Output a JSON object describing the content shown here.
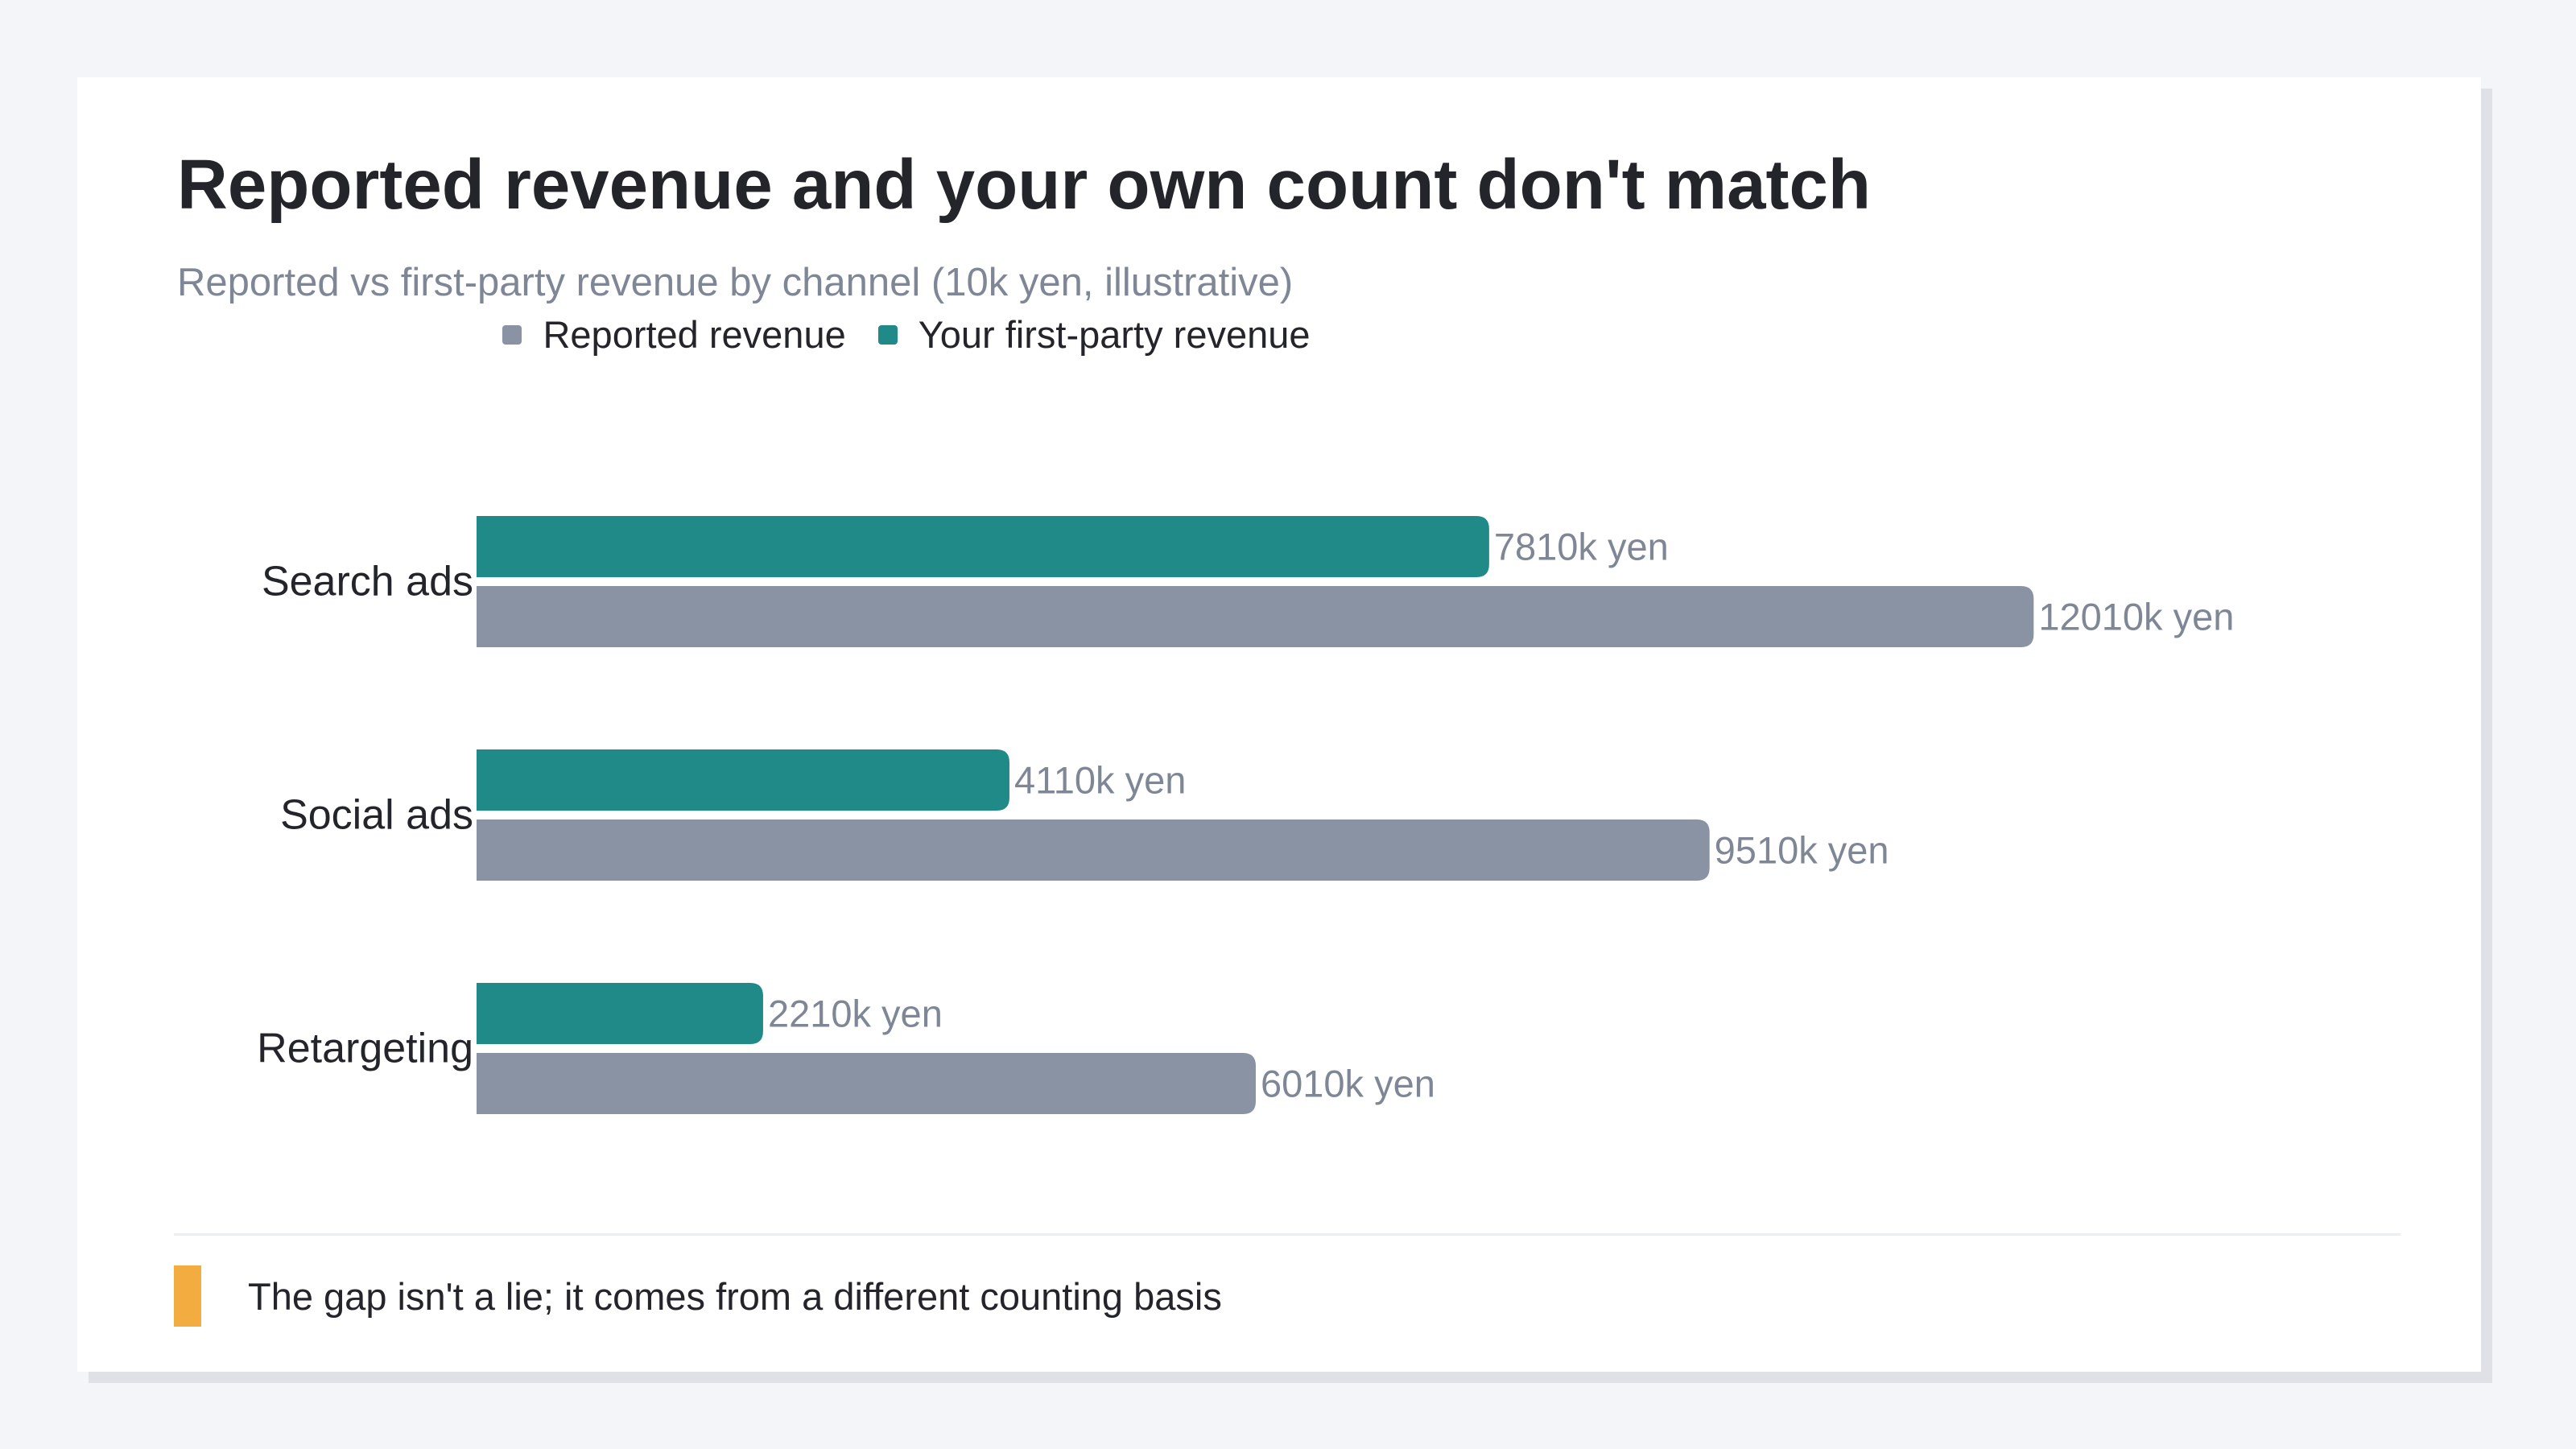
{
  "title": "Reported revenue and your own count don't match",
  "subtitle": "Reported vs first-party revenue by channel (10k yen, illustrative)",
  "note": "The gap isn't a lie; it comes from a different counting basis",
  "colors": {
    "reported": "#8a93a3",
    "first_party": "#1f8a88",
    "note_accent": "#f2ac3f"
  },
  "chart_data": {
    "type": "bar",
    "orientation": "horizontal",
    "categories": [
      "Search ads",
      "Social ads",
      "Retargeting"
    ],
    "series": [
      {
        "name": "Your first-party revenue",
        "values": [
          781,
          411,
          221
        ],
        "labels": [
          "7810k yen",
          "4110k yen",
          "2210k yen"
        ]
      },
      {
        "name": "Reported revenue",
        "values": [
          1201,
          951,
          601
        ],
        "labels": [
          "12010k yen",
          "9510k yen",
          "6010k yen"
        ]
      }
    ],
    "xlim": [
      0,
      1350
    ],
    "grid": false,
    "legend": "top-center"
  }
}
